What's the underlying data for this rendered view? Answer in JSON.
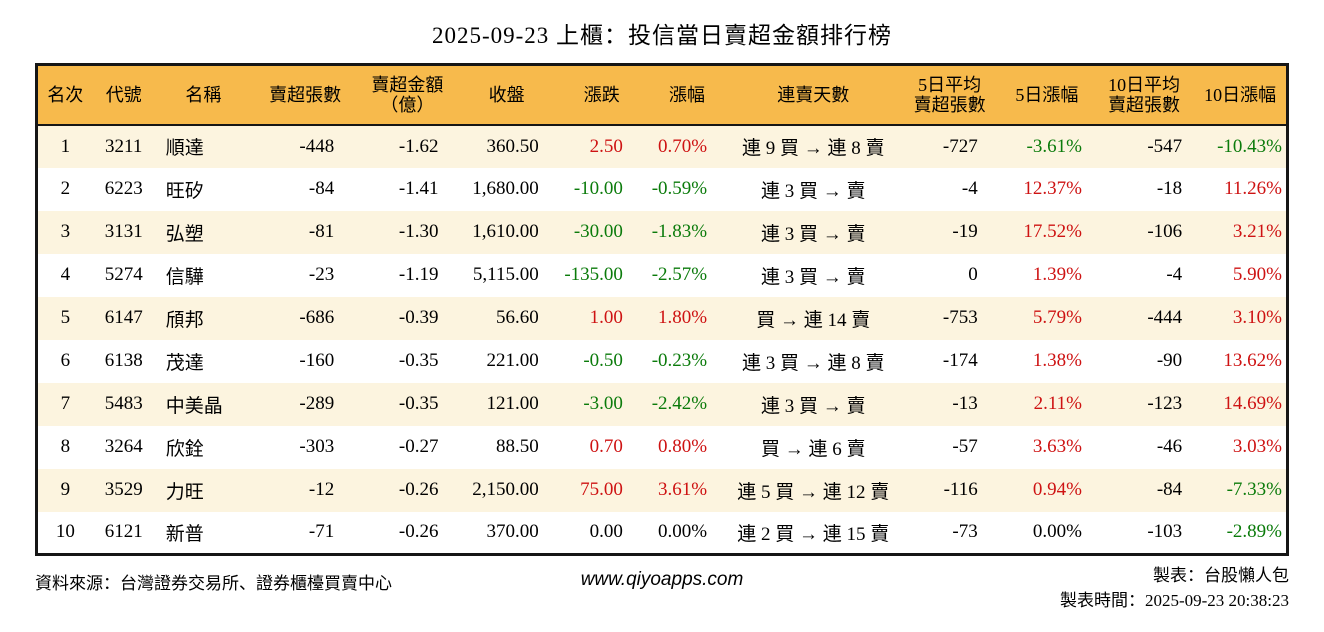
{
  "title": "2025-09-23 上櫃：投信當日賣超金額排行榜",
  "colors": {
    "red": "#CE1212",
    "green": "#0B7B0B",
    "header_bg": "#F7BA4C",
    "row_alt_bg": "#FCF4DF",
    "border": "#161616"
  },
  "table": {
    "columns": [
      {
        "key": "rank",
        "label": "名次"
      },
      {
        "key": "code",
        "label": "代號"
      },
      {
        "key": "name",
        "label": "名稱"
      },
      {
        "key": "sell_volume",
        "label": "賣超張數"
      },
      {
        "key": "sell_amount",
        "label": "賣超金額\n（億）"
      },
      {
        "key": "close",
        "label": "收盤"
      },
      {
        "key": "change",
        "label": "漲跌"
      },
      {
        "key": "change_pct",
        "label": "漲幅"
      },
      {
        "key": "streak",
        "label": "連賣天數"
      },
      {
        "key": "avg5_volume",
        "label": "5日平均\n賣超張數"
      },
      {
        "key": "pct5",
        "label": "5日漲幅"
      },
      {
        "key": "avg10_volume",
        "label": "10日平均\n賣超張數"
      },
      {
        "key": "pct10",
        "label": "10日漲幅"
      }
    ],
    "rows": [
      {
        "cells": {
          "rank": "1",
          "code": "3211",
          "name": "順達",
          "sell_volume": "-448",
          "sell_amount": "-1.62",
          "close": "360.50",
          "change": "2.50",
          "change_pct": "0.70%",
          "streak": "連 9 買 → 連 8 賣",
          "avg5_volume": "-727",
          "pct5": "-3.61%",
          "avg10_volume": "-547",
          "pct10": "-10.43%"
        },
        "colors": {
          "change": "red",
          "change_pct": "red",
          "pct5": "green",
          "pct10": "green"
        }
      },
      {
        "cells": {
          "rank": "2",
          "code": "6223",
          "name": "旺矽",
          "sell_volume": "-84",
          "sell_amount": "-1.41",
          "close": "1,680.00",
          "change": "-10.00",
          "change_pct": "-0.59%",
          "streak": "連 3 買 → 賣",
          "avg5_volume": "-4",
          "pct5": "12.37%",
          "avg10_volume": "-18",
          "pct10": "11.26%"
        },
        "colors": {
          "change": "green",
          "change_pct": "green",
          "pct5": "red",
          "pct10": "red"
        }
      },
      {
        "cells": {
          "rank": "3",
          "code": "3131",
          "name": "弘塑",
          "sell_volume": "-81",
          "sell_amount": "-1.30",
          "close": "1,610.00",
          "change": "-30.00",
          "change_pct": "-1.83%",
          "streak": "連 3 買 → 賣",
          "avg5_volume": "-19",
          "pct5": "17.52%",
          "avg10_volume": "-106",
          "pct10": "3.21%"
        },
        "colors": {
          "change": "green",
          "change_pct": "green",
          "pct5": "red",
          "pct10": "red"
        }
      },
      {
        "cells": {
          "rank": "4",
          "code": "5274",
          "name": "信驊",
          "sell_volume": "-23",
          "sell_amount": "-1.19",
          "close": "5,115.00",
          "change": "-135.00",
          "change_pct": "-2.57%",
          "streak": "連 3 買 → 賣",
          "avg5_volume": "0",
          "pct5": "1.39%",
          "avg10_volume": "-4",
          "pct10": "5.90%"
        },
        "colors": {
          "change": "green",
          "change_pct": "green",
          "pct5": "red",
          "pct10": "red"
        }
      },
      {
        "cells": {
          "rank": "5",
          "code": "6147",
          "name": "頎邦",
          "sell_volume": "-686",
          "sell_amount": "-0.39",
          "close": "56.60",
          "change": "1.00",
          "change_pct": "1.80%",
          "streak": "買 → 連 14 賣",
          "avg5_volume": "-753",
          "pct5": "5.79%",
          "avg10_volume": "-444",
          "pct10": "3.10%"
        },
        "colors": {
          "change": "red",
          "change_pct": "red",
          "pct5": "red",
          "pct10": "red"
        }
      },
      {
        "cells": {
          "rank": "6",
          "code": "6138",
          "name": "茂達",
          "sell_volume": "-160",
          "sell_amount": "-0.35",
          "close": "221.00",
          "change": "-0.50",
          "change_pct": "-0.23%",
          "streak": "連 3 買 → 連 8 賣",
          "avg5_volume": "-174",
          "pct5": "1.38%",
          "avg10_volume": "-90",
          "pct10": "13.62%"
        },
        "colors": {
          "change": "green",
          "change_pct": "green",
          "pct5": "red",
          "pct10": "red"
        }
      },
      {
        "cells": {
          "rank": "7",
          "code": "5483",
          "name": "中美晶",
          "sell_volume": "-289",
          "sell_amount": "-0.35",
          "close": "121.00",
          "change": "-3.00",
          "change_pct": "-2.42%",
          "streak": "連 3 買 → 賣",
          "avg5_volume": "-13",
          "pct5": "2.11%",
          "avg10_volume": "-123",
          "pct10": "14.69%"
        },
        "colors": {
          "change": "green",
          "change_pct": "green",
          "pct5": "red",
          "pct10": "red"
        }
      },
      {
        "cells": {
          "rank": "8",
          "code": "3264",
          "name": "欣銓",
          "sell_volume": "-303",
          "sell_amount": "-0.27",
          "close": "88.50",
          "change": "0.70",
          "change_pct": "0.80%",
          "streak": "買 → 連 6 賣",
          "avg5_volume": "-57",
          "pct5": "3.63%",
          "avg10_volume": "-46",
          "pct10": "3.03%"
        },
        "colors": {
          "change": "red",
          "change_pct": "red",
          "pct5": "red",
          "pct10": "red"
        }
      },
      {
        "cells": {
          "rank": "9",
          "code": "3529",
          "name": "力旺",
          "sell_volume": "-12",
          "sell_amount": "-0.26",
          "close": "2,150.00",
          "change": "75.00",
          "change_pct": "3.61%",
          "streak": "連 5 買 → 連 12 賣",
          "avg5_volume": "-116",
          "pct5": "0.94%",
          "avg10_volume": "-84",
          "pct10": "-7.33%"
        },
        "colors": {
          "change": "red",
          "change_pct": "red",
          "pct5": "red",
          "pct10": "green"
        }
      },
      {
        "cells": {
          "rank": "10",
          "code": "6121",
          "name": "新普",
          "sell_volume": "-71",
          "sell_amount": "-0.26",
          "close": "370.00",
          "change": "0.00",
          "change_pct": "0.00%",
          "streak": "連 2 買 → 連 15 賣",
          "avg5_volume": "-73",
          "pct5": "0.00%",
          "avg10_volume": "-103",
          "pct10": "-2.89%"
        },
        "colors": {
          "pct10": "green"
        }
      }
    ]
  },
  "footer": {
    "source": "資料來源：台灣證券交易所、證券櫃檯買賣中心",
    "website": "www.qiyoapps.com",
    "maker": "製表：台股懶人包",
    "generated": "製表時間：2025-09-23 20:38:23"
  }
}
